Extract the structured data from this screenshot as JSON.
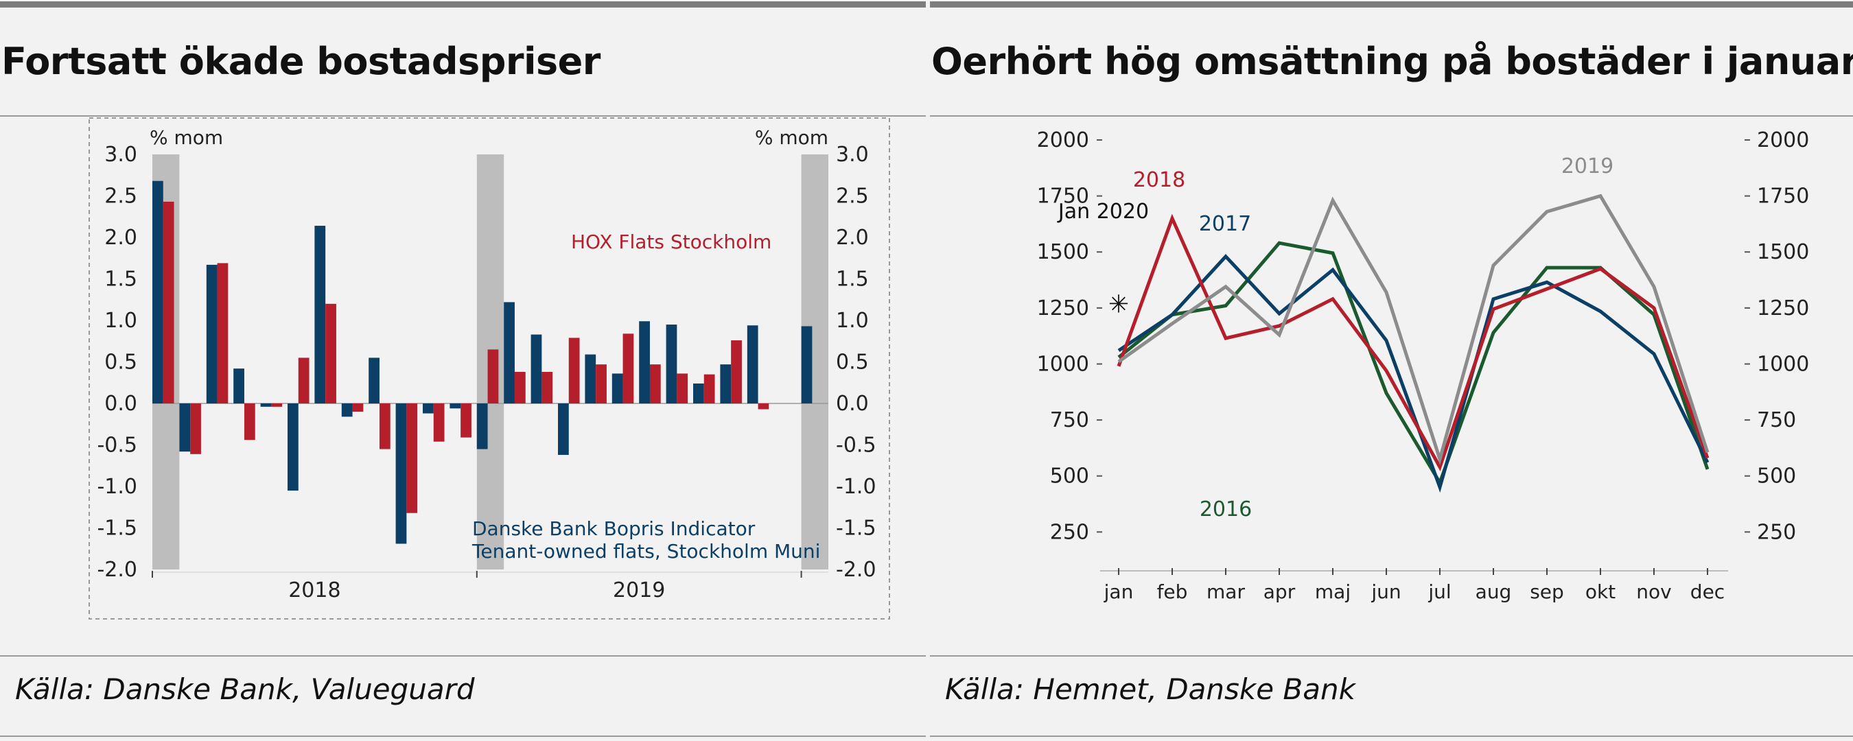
{
  "left_panel": {
    "title": "Fortsatt ökade bostadspriser",
    "source": "Källa: Danske Bank, Valueguard"
  },
  "right_panel": {
    "title": "Oerhört hög omsättning på bostäder i januari",
    "source": "Källa: Hemnet, Danske Bank"
  },
  "chart_data": [
    {
      "type": "bar",
      "y_unit_label_left": "% mom",
      "y_unit_label_right": "% mom",
      "ylim": [
        -2.0,
        3.0
      ],
      "yticks": [
        "3.0",
        "2.5",
        "2.0",
        "1.5",
        "1.0",
        "0.5",
        "0.0",
        "-0.5",
        "-1.0",
        "-1.5",
        "-2.0"
      ],
      "year_labels": [
        "2018",
        "2019"
      ],
      "months": [
        "2018-01",
        "2018-02",
        "2018-03",
        "2018-04",
        "2018-05",
        "2018-06",
        "2018-07",
        "2018-08",
        "2018-09",
        "2018-10",
        "2018-11",
        "2018-12",
        "2019-01",
        "2019-02",
        "2019-03",
        "2019-04",
        "2019-05",
        "2019-06",
        "2019-07",
        "2019-08",
        "2019-09",
        "2019-10",
        "2019-11",
        "2019-12",
        "2020-01"
      ],
      "shaded_months": [
        "2018-01",
        "2019-01",
        "2020-01"
      ],
      "series": [
        {
          "name": "Danske Bank Bopris Indicator Tenant-owned flats, Stockholm Muni",
          "label_lines": [
            "Danske Bank Bopris Indicator",
            "Tenant-owned flats, Stockholm Muni"
          ],
          "color": "#0b3f66",
          "values": [
            2.68,
            -0.58,
            1.67,
            0.42,
            -0.04,
            -1.05,
            2.14,
            -0.16,
            0.55,
            -1.69,
            -0.12,
            -0.06,
            -0.55,
            1.22,
            0.83,
            -0.62,
            0.59,
            0.36,
            0.99,
            0.95,
            0.24,
            0.47,
            0.94,
            null,
            0.93
          ]
        },
        {
          "name": "HOX Flats Stockholm",
          "label_lines": [
            "HOX Flats Stockholm"
          ],
          "color": "#b51e2b",
          "values": [
            2.43,
            -0.61,
            1.69,
            -0.44,
            -0.04,
            0.55,
            1.2,
            -0.1,
            -0.55,
            -1.32,
            -0.46,
            -0.41,
            0.65,
            0.38,
            0.38,
            0.79,
            0.47,
            0.84,
            0.47,
            0.36,
            0.35,
            0.76,
            -0.07,
            null,
            null
          ]
        }
      ]
    },
    {
      "type": "line",
      "categories": [
        "jan",
        "feb",
        "mar",
        "apr",
        "maj",
        "jun",
        "jul",
        "aug",
        "sep",
        "okt",
        "nov",
        "dec"
      ],
      "ylim": [
        150,
        2000
      ],
      "yticks": [
        2000,
        1750,
        1500,
        1250,
        1000,
        750,
        500,
        250
      ],
      "series": [
        {
          "name": "2016",
          "color": "#1b5a2e",
          "values": [
            1030,
            1220,
            1260,
            1540,
            1495,
            870,
            470,
            1140,
            1430,
            1430,
            1220,
            530
          ]
        },
        {
          "name": "2017",
          "color": "#0b3f66",
          "values": [
            1060,
            1220,
            1480,
            1225,
            1420,
            1105,
            450,
            1290,
            1365,
            1235,
            1045,
            560
          ]
        },
        {
          "name": "2018",
          "color": "#b51e2b",
          "values": [
            990,
            1650,
            1115,
            1170,
            1290,
            970,
            540,
            1245,
            1335,
            1425,
            1250,
            580
          ]
        },
        {
          "name": "2019",
          "color": "#8c8c8c",
          "values": [
            1010,
            1180,
            1345,
            1130,
            1730,
            1320,
            575,
            1440,
            1680,
            1750,
            1345,
            605
          ]
        },
        {
          "name": "Jan 2020",
          "color": "#111111",
          "marker": "asterisk",
          "values": [
            1285,
            null,
            null,
            null,
            null,
            null,
            null,
            null,
            null,
            null,
            null,
            null
          ]
        }
      ]
    }
  ]
}
